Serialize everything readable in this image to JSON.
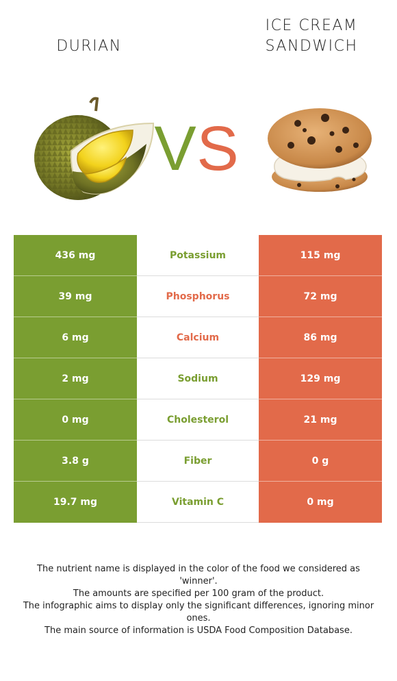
{
  "foods": {
    "left": {
      "name": "DURIAN",
      "color": "#7a9e31",
      "image": "durian-fruit"
    },
    "right": {
      "name_line1": "ICE CREAM",
      "name_line2": "SANDWICH",
      "color": "#e26a4a",
      "image": "ice-cream-sandwich"
    }
  },
  "vs": {
    "v": "V",
    "s": "S"
  },
  "rows": [
    {
      "nutrient": "Potassium",
      "left": "436 mg",
      "right": "115 mg",
      "winner": "left"
    },
    {
      "nutrient": "Phosphorus",
      "left": "39 mg",
      "right": "72 mg",
      "winner": "right"
    },
    {
      "nutrient": "Calcium",
      "left": "6 mg",
      "right": "86 mg",
      "winner": "right"
    },
    {
      "nutrient": "Sodium",
      "left": "2 mg",
      "right": "129 mg",
      "winner": "left"
    },
    {
      "nutrient": "Cholesterol",
      "left": "0 mg",
      "right": "21 mg",
      "winner": "left"
    },
    {
      "nutrient": "Fiber",
      "left": "3.8 g",
      "right": "0 g",
      "winner": "left"
    },
    {
      "nutrient": "Vitamin C",
      "left": "19.7 mg",
      "right": "0 mg",
      "winner": "left"
    }
  ],
  "notes": [
    "The nutrient name is displayed in the color of the food we considered as 'winner'.",
    "The amounts are specified per 100 gram of the product.",
    "The infographic aims to display only the significant differences, ignoring minor ones.",
    "The main source of information is USDA Food Composition Database."
  ]
}
